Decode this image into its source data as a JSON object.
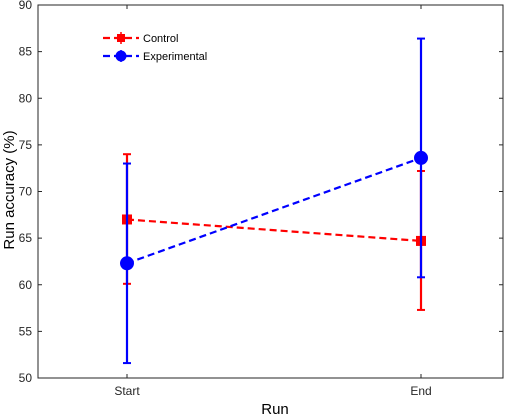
{
  "chart_data": {
    "type": "line",
    "title": "",
    "xlabel": "Run",
    "ylabel": "Run accuracy (%)",
    "categories": [
      "Start",
      "End"
    ],
    "ylim": [
      50,
      90
    ],
    "yticks": [
      50,
      55,
      60,
      65,
      70,
      75,
      80,
      85,
      90
    ],
    "grid": false,
    "legend_position": "top-left",
    "series": [
      {
        "name": "Control",
        "color": "#ff0000",
        "marker": "square",
        "line_style": "dashed",
        "values": [
          67.0,
          64.7
        ],
        "err_low": [
          60.1,
          57.3
        ],
        "err_high": [
          74.0,
          72.2
        ]
      },
      {
        "name": "Experimental",
        "color": "#0000ff",
        "marker": "circle",
        "line_style": "dashed",
        "values": [
          62.3,
          73.6
        ],
        "err_low": [
          51.6,
          60.8
        ],
        "err_high": [
          73.0,
          86.4
        ]
      }
    ]
  }
}
